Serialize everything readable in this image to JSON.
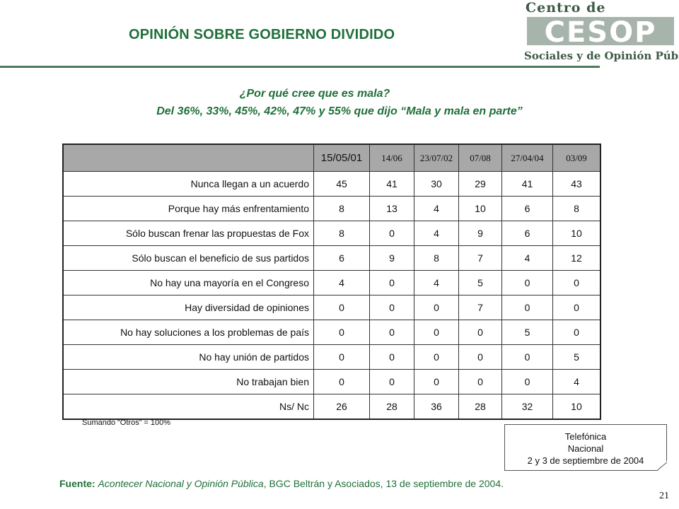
{
  "title": "OPINIÓN SOBRE GOBIERNO DIVIDIDO",
  "logo": {
    "top": "Centro de Estudios",
    "mark": "CESOP",
    "bottom": "Sociales y de Opinión Pública",
    "color": "#3d5a47"
  },
  "question": {
    "line1": "¿Por qué cree que es mala?",
    "line2": "Del 36%, 33%, 45%, 42%, 47% y 55% que dijo “Mala y mala en parte”"
  },
  "table": {
    "headers": [
      "15/05/01",
      "14/06",
      "23/07/02",
      "07/08",
      "27/04/04",
      "03/09"
    ],
    "rows": [
      {
        "label": "Nunca llegan a un acuerdo",
        "values": [
          "45",
          "41",
          "30",
          "29",
          "41",
          "43"
        ]
      },
      {
        "label": "Porque hay más enfrentamiento",
        "values": [
          "8",
          "13",
          "4",
          "10",
          "6",
          "8"
        ]
      },
      {
        "label": "Sólo buscan frenar las propuestas de Fox",
        "values": [
          "8",
          "0",
          "4",
          "9",
          "6",
          "10"
        ]
      },
      {
        "label": "Sólo buscan el beneficio de sus partidos",
        "values": [
          "6",
          "9",
          "8",
          "7",
          "4",
          "12"
        ]
      },
      {
        "label": "No hay una mayoría en el Congreso",
        "values": [
          "4",
          "0",
          "4",
          "5",
          "0",
          "0"
        ]
      },
      {
        "label": "Hay diversidad de opiniones",
        "values": [
          "0",
          "0",
          "0",
          "7",
          "0",
          "0"
        ]
      },
      {
        "label": "No hay soluciones a los problemas de país",
        "values": [
          "0",
          "0",
          "0",
          "0",
          "5",
          "0"
        ]
      },
      {
        "label": "No hay unión de partidos",
        "values": [
          "0",
          "0",
          "0",
          "0",
          "0",
          "5"
        ]
      },
      {
        "label": "No trabajan bien",
        "values": [
          "0",
          "0",
          "0",
          "0",
          "0",
          "4"
        ]
      },
      {
        "label": "Ns/ Nc",
        "values": [
          "26",
          "28",
          "36",
          "28",
          "32",
          "10"
        ]
      }
    ]
  },
  "note": "Sumando “Otros” = 100%",
  "method_box": {
    "line1": "Telefónica",
    "line2": "Nacional",
    "line3": "2 y 3 de septiembre de 2004"
  },
  "source": {
    "label": "Fuente:",
    "title": "Acontecer Nacional y Opinión Pública",
    "rest": ", BGC Beltrán y Asociados, 13 de septiembre de 2004."
  },
  "page_number": "21",
  "colors": {
    "accent": "#1f6f3a",
    "header_bg": "#a8a8a8"
  }
}
